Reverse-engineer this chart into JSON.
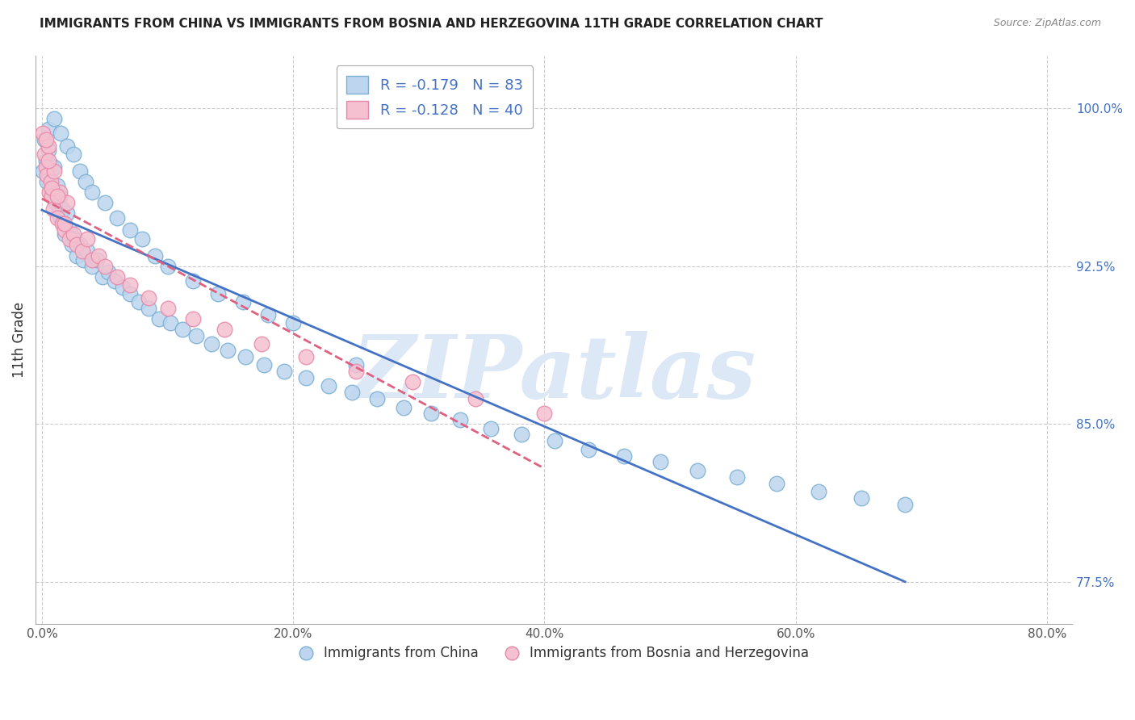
{
  "title": "IMMIGRANTS FROM CHINA VS IMMIGRANTS FROM BOSNIA AND HERZEGOVINA 11TH GRADE CORRELATION CHART",
  "source": "Source: ZipAtlas.com",
  "xlabel_bottom_vals": [
    0.0,
    0.2,
    0.4,
    0.6,
    0.8
  ],
  "ylabel_right": [
    "100.0%",
    "92.5%",
    "85.0%",
    "77.5%"
  ],
  "ylabel_right_vals": [
    1.0,
    0.925,
    0.85,
    0.775
  ],
  "ylabel_left": "11th Grade",
  "xlim": [
    -0.005,
    0.82
  ],
  "ylim": [
    0.755,
    1.025
  ],
  "china_R": -0.179,
  "china_N": 83,
  "bosnia_R": -0.128,
  "bosnia_N": 40,
  "china_color": "#bdd5ee",
  "china_edge": "#7aafd4",
  "bosnia_color": "#f5c0cf",
  "bosnia_edge": "#e888a8",
  "china_line_color": "#4472c4",
  "bosnia_line_color": "#e06080",
  "watermark": "ZIPatlas",
  "watermark_color": "#dce8f5",
  "legend_color_china": "#bdd5ee",
  "legend_color_bosnia": "#f5c0cf",
  "china_x": [
    0.001,
    0.002,
    0.003,
    0.004,
    0.005,
    0.006,
    0.007,
    0.008,
    0.009,
    0.01,
    0.011,
    0.012,
    0.013,
    0.014,
    0.015,
    0.016,
    0.017,
    0.018,
    0.02,
    0.022,
    0.024,
    0.026,
    0.028,
    0.03,
    0.033,
    0.036,
    0.04,
    0.044,
    0.048,
    0.053,
    0.058,
    0.064,
    0.07,
    0.077,
    0.085,
    0.093,
    0.102,
    0.112,
    0.123,
    0.135,
    0.148,
    0.162,
    0.177,
    0.193,
    0.21,
    0.228,
    0.247,
    0.267,
    0.288,
    0.31,
    0.333,
    0.357,
    0.382,
    0.408,
    0.435,
    0.463,
    0.492,
    0.522,
    0.553,
    0.585,
    0.618,
    0.652,
    0.687,
    0.005,
    0.01,
    0.015,
    0.02,
    0.025,
    0.03,
    0.035,
    0.04,
    0.05,
    0.06,
    0.07,
    0.08,
    0.09,
    0.1,
    0.12,
    0.14,
    0.16,
    0.18,
    0.2,
    0.25
  ],
  "china_y": [
    0.97,
    0.985,
    0.975,
    0.965,
    0.98,
    0.968,
    0.973,
    0.96,
    0.958,
    0.972,
    0.955,
    0.963,
    0.95,
    0.958,
    0.948,
    0.952,
    0.945,
    0.94,
    0.95,
    0.942,
    0.935,
    0.938,
    0.93,
    0.935,
    0.928,
    0.932,
    0.925,
    0.928,
    0.92,
    0.922,
    0.918,
    0.915,
    0.912,
    0.908,
    0.905,
    0.9,
    0.898,
    0.895,
    0.892,
    0.888,
    0.885,
    0.882,
    0.878,
    0.875,
    0.872,
    0.868,
    0.865,
    0.862,
    0.858,
    0.855,
    0.852,
    0.848,
    0.845,
    0.842,
    0.838,
    0.835,
    0.832,
    0.828,
    0.825,
    0.822,
    0.818,
    0.815,
    0.812,
    0.99,
    0.995,
    0.988,
    0.982,
    0.978,
    0.97,
    0.965,
    0.96,
    0.955,
    0.948,
    0.942,
    0.938,
    0.93,
    0.925,
    0.918,
    0.912,
    0.908,
    0.902,
    0.898,
    0.878
  ],
  "bosnia_x": [
    0.001,
    0.002,
    0.003,
    0.004,
    0.005,
    0.006,
    0.007,
    0.008,
    0.009,
    0.01,
    0.012,
    0.014,
    0.016,
    0.018,
    0.02,
    0.022,
    0.025,
    0.028,
    0.032,
    0.036,
    0.04,
    0.045,
    0.05,
    0.06,
    0.07,
    0.085,
    0.1,
    0.12,
    0.145,
    0.175,
    0.21,
    0.25,
    0.295,
    0.345,
    0.4,
    0.005,
    0.003,
    0.008,
    0.012,
    0.018
  ],
  "bosnia_y": [
    0.988,
    0.978,
    0.972,
    0.968,
    0.982,
    0.96,
    0.965,
    0.958,
    0.952,
    0.97,
    0.948,
    0.96,
    0.945,
    0.942,
    0.955,
    0.938,
    0.94,
    0.935,
    0.932,
    0.938,
    0.928,
    0.93,
    0.925,
    0.92,
    0.916,
    0.91,
    0.905,
    0.9,
    0.895,
    0.888,
    0.882,
    0.875,
    0.87,
    0.862,
    0.855,
    0.975,
    0.985,
    0.962,
    0.958,
    0.945
  ]
}
